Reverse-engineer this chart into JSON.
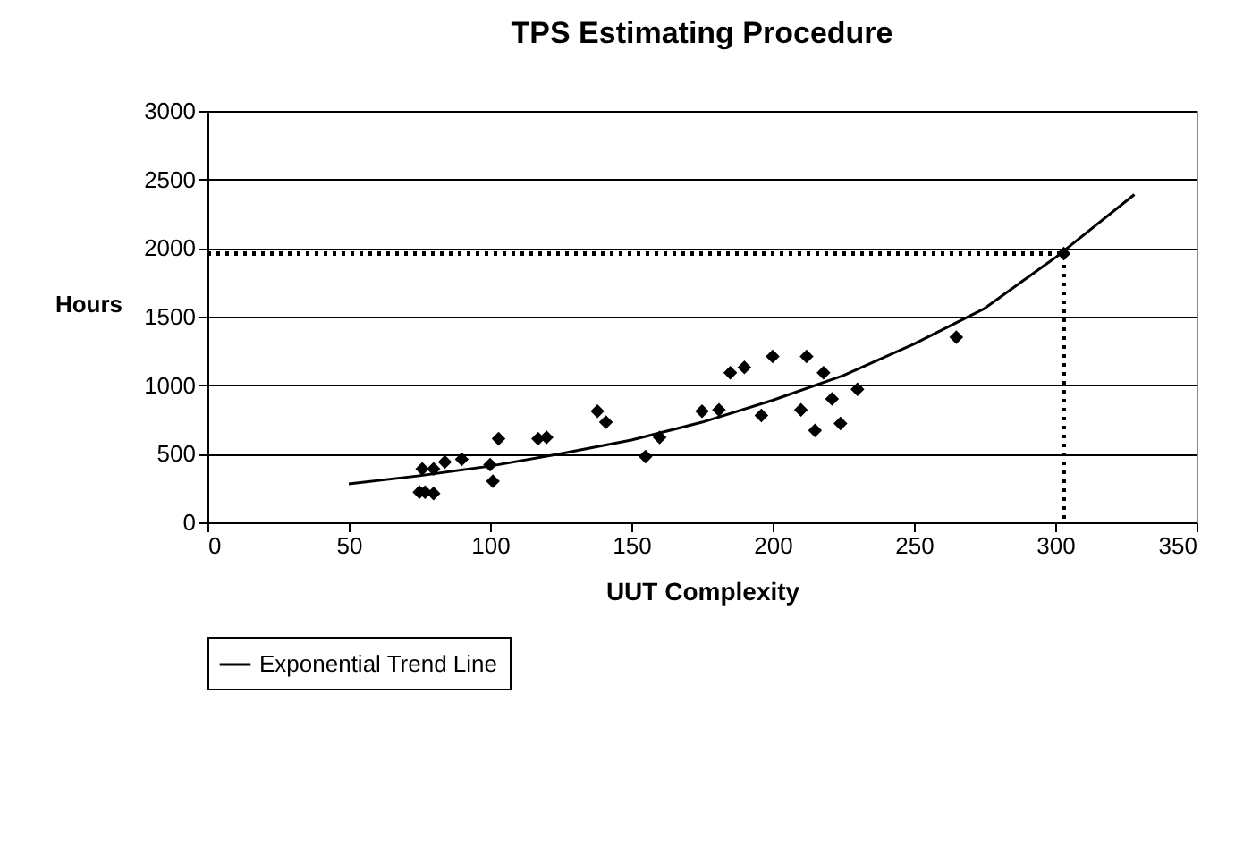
{
  "chart_data": {
    "type": "scatter",
    "title": "TPS Estimating Procedure",
    "xlabel": "UUT Complexity",
    "ylabel": "Hours",
    "xlim": [
      0,
      350
    ],
    "xticks": [
      0,
      50,
      100,
      150,
      200,
      250,
      300,
      350
    ],
    "ylim": [
      0,
      3000
    ],
    "yticks": [
      0,
      500,
      1000,
      1500,
      2000,
      2500,
      3000
    ],
    "grid": "y",
    "legend": "bottom",
    "series": [
      {
        "marker": "diamond",
        "color": "#000000",
        "x": [
          75,
          77,
          80,
          76,
          80,
          84,
          90,
          100,
          101,
          103,
          117,
          120,
          138,
          141,
          155,
          160,
          175,
          181,
          185,
          190,
          196,
          200,
          210,
          212,
          215,
          218,
          221,
          224,
          230,
          265,
          303
        ],
        "values": [
          220,
          220,
          210,
          390,
          390,
          440,
          460,
          420,
          300,
          610,
          610,
          620,
          810,
          730,
          480,
          620,
          810,
          820,
          1090,
          1130,
          780,
          1210,
          820,
          1210,
          670,
          1090,
          900,
          720,
          970,
          1350,
          1960
        ]
      },
      {
        "type": "line",
        "name": "Exponential Trend Line",
        "color": "#000000",
        "line_style": "solid",
        "x": [
          50,
          75,
          100,
          125,
          150,
          175,
          200,
          225,
          250,
          275,
          300,
          328
        ],
        "values": [
          280,
          340,
          410,
          500,
          600,
          730,
          890,
          1070,
          1300,
          1560,
          1930,
          2390
        ]
      },
      {
        "type": "line",
        "color": "#000000",
        "line_style": "dotted",
        "x": [
          0,
          303,
          303
        ],
        "values": [
          1960,
          1960,
          0
        ]
      }
    ]
  }
}
